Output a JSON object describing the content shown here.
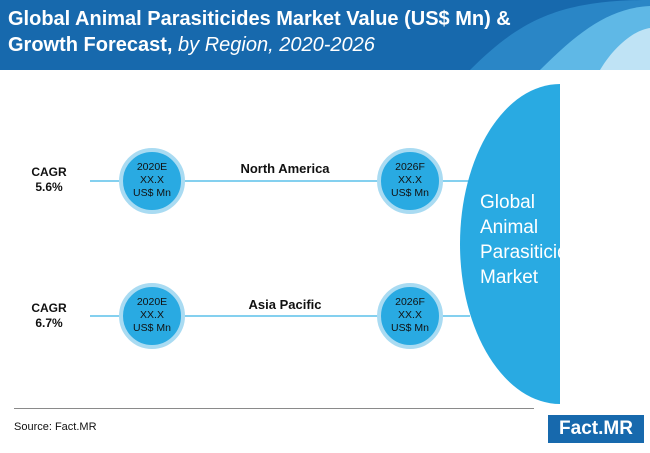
{
  "header": {
    "title_main": "Global Animal Parasiticides Market Value (US$ Mn) & Growth Forecast, ",
    "title_sub": "by Region, 2020-2026"
  },
  "rows": [
    {
      "cagr_label": "CAGR",
      "cagr_value": "5.6%",
      "region": "North America",
      "start": {
        "year": "2020E",
        "value": "XX.X",
        "unit": "US$ Mn"
      },
      "end": {
        "year": "2026F",
        "value": "XX.X",
        "unit": "US$ Mn"
      }
    },
    {
      "cagr_label": "CAGR",
      "cagr_value": "6.7%",
      "region": "Asia Pacific",
      "start": {
        "year": "2020E",
        "value": "XX.X",
        "unit": "US$ Mn"
      },
      "end": {
        "year": "2026F",
        "value": "XX.X",
        "unit": "US$ Mn"
      }
    }
  ],
  "market": {
    "line1": "Global",
    "line2": "Animal",
    "line3": "Parasiticides",
    "line4": "Market"
  },
  "footer": {
    "source": "Source: Fact.MR",
    "brand": "Fact.MR"
  },
  "colors": {
    "header_bg": "#1769ad",
    "circle_fill": "#29aae2",
    "circle_stroke": "#a9dbf2",
    "line": "#5cc0ea",
    "market_fill": "#29aae2"
  }
}
